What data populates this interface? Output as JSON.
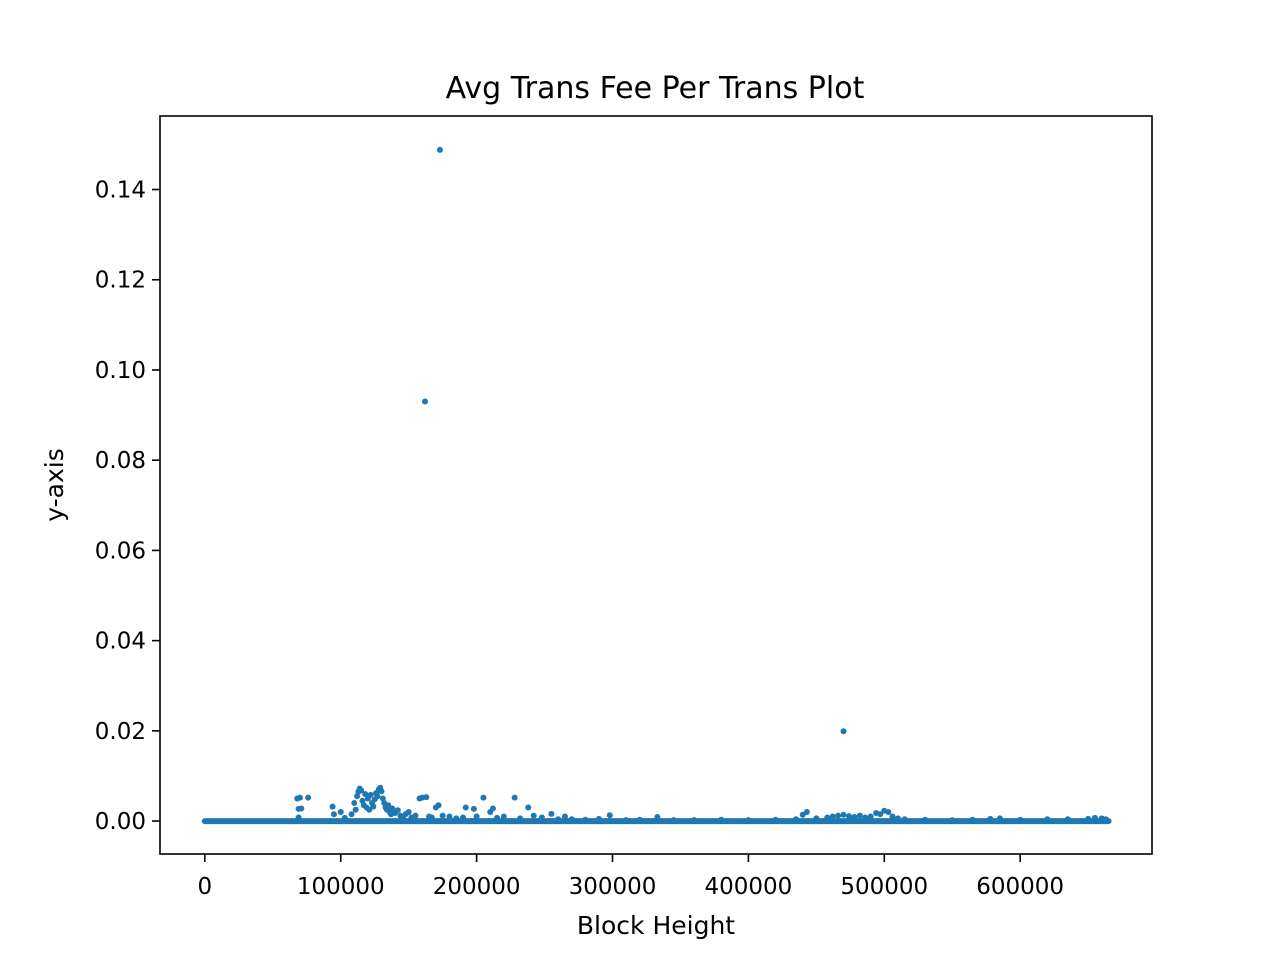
{
  "chart_data": {
    "type": "scatter",
    "title": "Avg Trans Fee Per Trans Plot",
    "xlabel": "Block Height",
    "ylabel": "y-axis",
    "xlim": [
      -33000,
      697000
    ],
    "ylim": [
      -0.0073,
      0.1563
    ],
    "x_ticks": [
      0,
      100000,
      200000,
      300000,
      400000,
      500000,
      600000
    ],
    "y_ticks": [
      0.0,
      0.02,
      0.04,
      0.06,
      0.08,
      0.1,
      0.12,
      0.14
    ],
    "y_tick_labels": [
      "0.00",
      "0.02",
      "0.04",
      "0.06",
      "0.08",
      "0.10",
      "0.12",
      "0.14"
    ],
    "grid": false,
    "marker_color": "#1f77b4",
    "baseline": {
      "x_start": 0,
      "x_end": 665000,
      "y": 0.0
    },
    "points": [
      [
        173000,
        0.1488
      ],
      [
        162000,
        0.093
      ],
      [
        470000,
        0.0199
      ],
      [
        68000,
        0.005
      ],
      [
        70000,
        0.0052
      ],
      [
        76000,
        0.0052
      ],
      [
        69000,
        0.0027
      ],
      [
        71000,
        0.0028
      ],
      [
        69000,
        0.0008
      ],
      [
        94000,
        0.0032
      ],
      [
        95000,
        0.0015
      ],
      [
        100000,
        0.002
      ],
      [
        103000,
        0.0007
      ],
      [
        108000,
        0.0015
      ],
      [
        110000,
        0.004
      ],
      [
        111000,
        0.0025
      ],
      [
        112000,
        0.0055
      ],
      [
        113000,
        0.0065
      ],
      [
        114000,
        0.0072
      ],
      [
        115000,
        0.0068
      ],
      [
        116000,
        0.0045
      ],
      [
        117000,
        0.0035
      ],
      [
        118000,
        0.006
      ],
      [
        119000,
        0.003
      ],
      [
        120000,
        0.005
      ],
      [
        121000,
        0.0025
      ],
      [
        122000,
        0.0058
      ],
      [
        123000,
        0.004
      ],
      [
        124000,
        0.0032
      ],
      [
        125000,
        0.0048
      ],
      [
        126000,
        0.0062
      ],
      [
        127000,
        0.0055
      ],
      [
        128000,
        0.007
      ],
      [
        129000,
        0.0074
      ],
      [
        130000,
        0.0066
      ],
      [
        131000,
        0.005
      ],
      [
        132000,
        0.004
      ],
      [
        133000,
        0.003
      ],
      [
        134000,
        0.0025
      ],
      [
        135000,
        0.0035
      ],
      [
        136000,
        0.002
      ],
      [
        137000,
        0.0015
      ],
      [
        138000,
        0.0028
      ],
      [
        140000,
        0.0018
      ],
      [
        142000,
        0.0024
      ],
      [
        144000,
        0.0012
      ],
      [
        146000,
        0.001
      ],
      [
        148000,
        0.0016
      ],
      [
        150000,
        0.002
      ],
      [
        152000,
        0.0008
      ],
      [
        155000,
        0.0012
      ],
      [
        158000,
        0.005
      ],
      [
        160000,
        0.0052
      ],
      [
        163000,
        0.0053
      ],
      [
        165000,
        0.001
      ],
      [
        167000,
        0.0008
      ],
      [
        170000,
        0.003
      ],
      [
        172000,
        0.0035
      ],
      [
        175000,
        0.0012
      ],
      [
        180000,
        0.001
      ],
      [
        185000,
        0.0006
      ],
      [
        190000,
        0.0008
      ],
      [
        192000,
        0.003
      ],
      [
        198000,
        0.0027
      ],
      [
        200000,
        0.001
      ],
      [
        205000,
        0.0052
      ],
      [
        210000,
        0.002
      ],
      [
        212000,
        0.0028
      ],
      [
        215000,
        0.0007
      ],
      [
        220000,
        0.001
      ],
      [
        228000,
        0.0052
      ],
      [
        232000,
        0.0006
      ],
      [
        238000,
        0.003
      ],
      [
        242000,
        0.0012
      ],
      [
        248000,
        0.0008
      ],
      [
        255000,
        0.0016
      ],
      [
        260000,
        0.0004
      ],
      [
        265000,
        0.001
      ],
      [
        270000,
        0.0004
      ],
      [
        280000,
        0.0003
      ],
      [
        290000,
        0.0005
      ],
      [
        298000,
        0.0013
      ],
      [
        310000,
        0.0002
      ],
      [
        320000,
        0.0003
      ],
      [
        333000,
        0.0009
      ],
      [
        345000,
        0.0002
      ],
      [
        360000,
        0.0002
      ],
      [
        380000,
        0.0003
      ],
      [
        400000,
        0.0002
      ],
      [
        420000,
        0.0003
      ],
      [
        435000,
        0.0004
      ],
      [
        440000,
        0.0014
      ],
      [
        443000,
        0.002
      ],
      [
        450000,
        0.0006
      ],
      [
        458000,
        0.0008
      ],
      [
        462000,
        0.001
      ],
      [
        466000,
        0.0012
      ],
      [
        470000,
        0.0014
      ],
      [
        474000,
        0.0011
      ],
      [
        478000,
        0.0009
      ],
      [
        482000,
        0.0012
      ],
      [
        486000,
        0.0008
      ],
      [
        490000,
        0.001
      ],
      [
        494000,
        0.0018
      ],
      [
        497000,
        0.0015
      ],
      [
        500000,
        0.0023
      ],
      [
        503000,
        0.002
      ],
      [
        506000,
        0.001
      ],
      [
        510000,
        0.0006
      ],
      [
        515000,
        0.0004
      ],
      [
        530000,
        0.0003
      ],
      [
        550000,
        0.0002
      ],
      [
        565000,
        0.0003
      ],
      [
        578000,
        0.0005
      ],
      [
        585000,
        0.0006
      ],
      [
        600000,
        0.0003
      ],
      [
        620000,
        0.0004
      ],
      [
        635000,
        0.0004
      ],
      [
        650000,
        0.0005
      ],
      [
        655000,
        0.0007
      ],
      [
        660000,
        0.0006
      ],
      [
        663000,
        0.0004
      ]
    ]
  }
}
